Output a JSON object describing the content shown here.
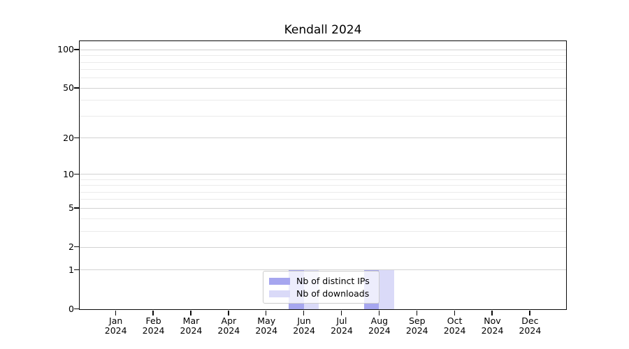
{
  "chart_data": {
    "type": "bar",
    "title": "Kendall 2024",
    "categories": [
      "Jan",
      "Feb",
      "Mar",
      "Apr",
      "May",
      "Jun",
      "Jul",
      "Aug",
      "Sep",
      "Oct",
      "Nov",
      "Dec"
    ],
    "year_label": "2024",
    "series": [
      {
        "name": "Nb of distinct IPs",
        "color": "#a6a6ef",
        "values": [
          0,
          0,
          0,
          0,
          0,
          1,
          0,
          1,
          0,
          0,
          0,
          0
        ]
      },
      {
        "name": "Nb of downloads",
        "color": "#dadaf8",
        "values": [
          0,
          0,
          0,
          0,
          0,
          1,
          0,
          1,
          0,
          0,
          0,
          0
        ]
      }
    ],
    "xlabel": "",
    "ylabel": "",
    "yscale": "log1p",
    "ylim": [
      0,
      116
    ],
    "yticks": [
      100,
      50,
      20,
      10,
      5,
      2,
      1,
      0
    ],
    "minor_yticks": [
      90,
      80,
      70,
      60,
      40,
      30,
      9,
      8,
      7,
      6,
      4,
      3
    ],
    "grid": "horizontal",
    "legend_position": "lower-center-inside",
    "colors": {
      "major_grid": "#d2d2d2",
      "minor_grid": "#ebebeb",
      "axis": "#0a0a0a",
      "text": "#000000",
      "background": "#ffffff"
    }
  }
}
